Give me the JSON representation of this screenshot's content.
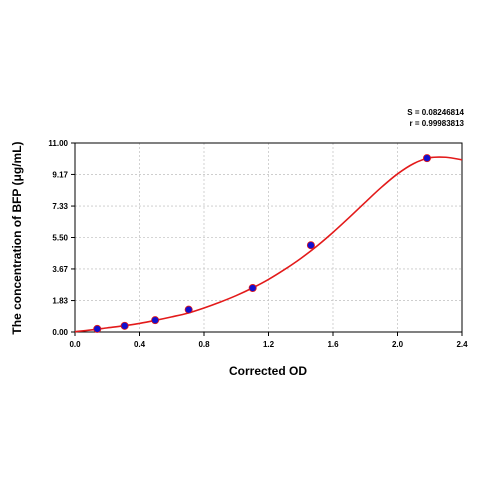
{
  "stats": {
    "s_text": "S = 0.08246814",
    "r_text": "r = 0.99983813"
  },
  "chart_data": {
    "type": "scatter",
    "title": "",
    "xlabel": "Corrected OD",
    "ylabel": "The concentration of BFP (μg/mL)",
    "xlim": [
      0.0,
      2.4
    ],
    "ylim": [
      0.0,
      11.0
    ],
    "x_ticks": [
      "0.0",
      "0.4",
      "0.8",
      "1.2",
      "1.6",
      "2.0",
      "2.4"
    ],
    "y_ticks": [
      "0.00",
      "1.83",
      "3.67",
      "5.50",
      "7.33",
      "9.17",
      "11.00"
    ],
    "grid": true,
    "series": [
      {
        "type": "scatter",
        "color": "#1010d0",
        "x": [
          0.138,
          0.308,
          0.497,
          0.705,
          1.102,
          1.463,
          2.183
        ],
        "y": [
          0.18,
          0.36,
          0.69,
          1.3,
          2.56,
          5.05,
          10.12
        ]
      },
      {
        "type": "line",
        "color": "#e31a1a",
        "x": [
          0.0,
          0.1,
          0.2,
          0.3,
          0.4,
          0.5,
          0.6,
          0.7,
          0.8,
          0.9,
          1.0,
          1.1,
          1.2,
          1.3,
          1.4,
          1.5,
          1.6,
          1.7,
          1.8,
          1.9,
          2.0,
          2.1,
          2.2,
          2.3,
          2.4
        ],
        "y": [
          0.02,
          0.12,
          0.24,
          0.36,
          0.5,
          0.68,
          0.88,
          1.1,
          1.4,
          1.74,
          2.12,
          2.56,
          3.06,
          3.64,
          4.28,
          5.0,
          5.8,
          6.66,
          7.55,
          8.42,
          9.2,
          9.8,
          10.14,
          10.17,
          10.02
        ]
      }
    ]
  }
}
